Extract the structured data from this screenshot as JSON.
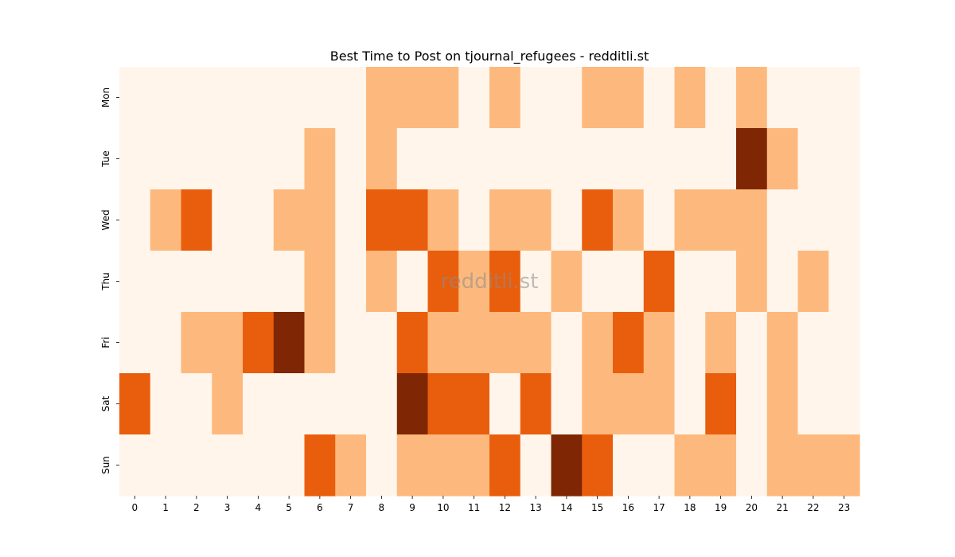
{
  "chart_data": {
    "type": "heatmap",
    "title": "Best Time to Post on tjournal_refugees - redditli.st",
    "watermark": "redditli.st",
    "x_ticks": [
      "0",
      "1",
      "2",
      "3",
      "4",
      "5",
      "6",
      "7",
      "8",
      "9",
      "10",
      "11",
      "12",
      "13",
      "14",
      "15",
      "16",
      "17",
      "18",
      "19",
      "20",
      "21",
      "22",
      "23"
    ],
    "y_ticks": [
      "Mon",
      "Tue",
      "Wed",
      "Thu",
      "Fri",
      "Sat",
      "Sun"
    ],
    "levels": 3,
    "colors": [
      "#fff5eb",
      "#fdb97d",
      "#e95e0d",
      "#7f2704"
    ],
    "values": [
      [
        0,
        0,
        0,
        0,
        0,
        0,
        0,
        0,
        1,
        1,
        1,
        0,
        1,
        0,
        0,
        1,
        1,
        0,
        1,
        0,
        1,
        0,
        0,
        0
      ],
      [
        0,
        0,
        0,
        0,
        0,
        0,
        1,
        0,
        1,
        0,
        0,
        0,
        0,
        0,
        0,
        0,
        0,
        0,
        0,
        0,
        3,
        1,
        0,
        0
      ],
      [
        0,
        1,
        2,
        0,
        0,
        1,
        1,
        0,
        2,
        2,
        1,
        0,
        1,
        1,
        0,
        2,
        1,
        0,
        1,
        1,
        1,
        0,
        0,
        0
      ],
      [
        0,
        0,
        0,
        0,
        0,
        0,
        1,
        0,
        1,
        0,
        2,
        1,
        2,
        0,
        1,
        0,
        0,
        2,
        0,
        0,
        1,
        0,
        1,
        0
      ],
      [
        0,
        0,
        1,
        1,
        2,
        3,
        1,
        0,
        0,
        2,
        1,
        1,
        1,
        1,
        0,
        1,
        2,
        1,
        0,
        1,
        0,
        1,
        0,
        0
      ],
      [
        2,
        0,
        0,
        1,
        0,
        0,
        0,
        0,
        0,
        3,
        2,
        2,
        0,
        2,
        0,
        1,
        1,
        1,
        0,
        2,
        0,
        1,
        0,
        0
      ],
      [
        0,
        0,
        0,
        0,
        0,
        0,
        2,
        1,
        0,
        1,
        1,
        1,
        2,
        0,
        3,
        2,
        0,
        0,
        1,
        1,
        0,
        1,
        1,
        1
      ]
    ]
  }
}
